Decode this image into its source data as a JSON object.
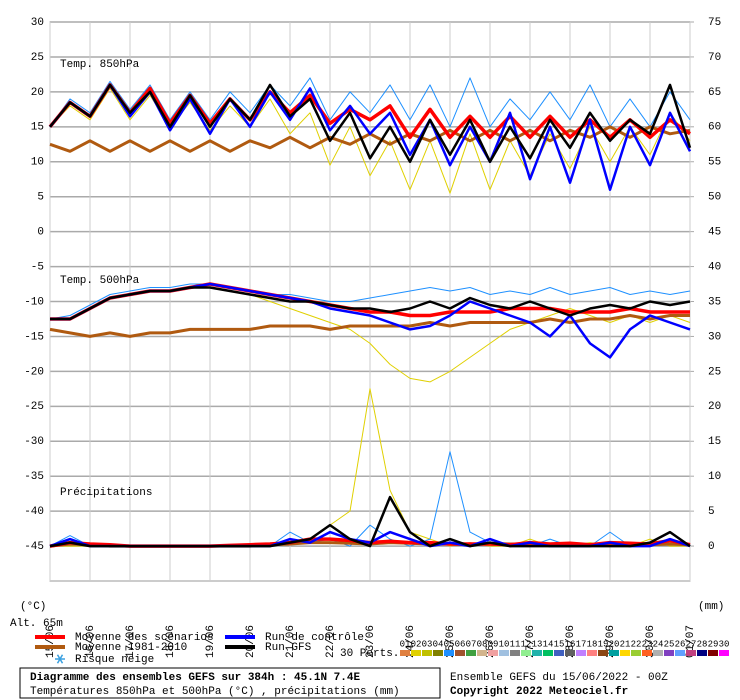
{
  "chart_data": {
    "type": "line",
    "panel_labels": [
      "Temp. 850hPa",
      "Temp. 500hPa",
      "Précipitations"
    ],
    "ylabel": "(°C)",
    "y2label": "(mm)",
    "altitude": "Alt. 65m",
    "snow_label": "Risque neige",
    "perts_label": "30 Perts.",
    "footer": {
      "title": "Diagramme des ensembles GEFS sur 384h : 45.1N 7.4E",
      "subtitle": "Températures 850hPa et 500hPa (°C) , précipitations (mm)",
      "run": "Ensemble GEFS du 15/06/2022 - 00Z",
      "copyright": "Copyright 2022 Meteociel.fr"
    },
    "xlim": [
      0,
      16
    ],
    "xticks": [
      {
        "value": 0,
        "label": "15/06"
      },
      {
        "value": 1,
        "label": "16/06"
      },
      {
        "value": 2,
        "label": "17/06"
      },
      {
        "value": 3,
        "label": "18/06"
      },
      {
        "value": 4,
        "label": "19/06"
      },
      {
        "value": 5,
        "label": "20/06"
      },
      {
        "value": 6,
        "label": "21/06"
      },
      {
        "value": 7,
        "label": "22/06"
      },
      {
        "value": 8,
        "label": "23/06"
      },
      {
        "value": 9,
        "label": "24/06"
      },
      {
        "value": 10,
        "label": "25/06"
      },
      {
        "value": 11,
        "label": "26/06"
      },
      {
        "value": 12,
        "label": "27/06"
      },
      {
        "value": 13,
        "label": "28/06"
      },
      {
        "value": 14,
        "label": "29/06"
      },
      {
        "value": 15,
        "label": "30/06"
      },
      {
        "value": 16,
        "label": "01/07"
      }
    ],
    "ylim": [
      -50,
      30
    ],
    "yticks": [
      30,
      25,
      20,
      15,
      10,
      5,
      0,
      -5,
      -10,
      -15,
      -20,
      -25,
      -30,
      -35,
      -40,
      -45
    ],
    "y2lim": [
      -5,
      75
    ],
    "y2ticks": [
      75,
      70,
      65,
      60,
      55,
      50,
      45,
      40,
      35,
      30,
      25,
      20,
      15,
      10,
      5,
      0
    ],
    "grid": true,
    "x": [
      0,
      0.5,
      1,
      1.5,
      2,
      2.5,
      3,
      3.5,
      4,
      4.5,
      5,
      5.5,
      6,
      6.5,
      7,
      7.5,
      8,
      8.5,
      9,
      9.5,
      10,
      10.5,
      11,
      11.5,
      12,
      12.5,
      13,
      13.5,
      14,
      14.5,
      15,
      15.5,
      16
    ],
    "perturbations": [
      {
        "name": "01",
        "color": "#e08040"
      },
      {
        "name": "02",
        "color": "#e0d000",
        "t850": [
          15,
          18,
          16,
          20.5,
          16,
          19.5,
          15,
          18.5,
          14.5,
          18,
          15,
          19,
          14,
          17,
          9.5,
          15,
          8,
          13,
          6,
          13,
          5.5,
          14,
          6,
          13,
          8,
          14,
          9,
          15,
          10,
          15,
          11,
          17,
          13
        ],
        "t500": [
          -12.5,
          -12.5,
          -11,
          -9.5,
          -9,
          -8.5,
          -8.5,
          -8,
          -8,
          -8.5,
          -9,
          -10,
          -11,
          -12,
          -13,
          -14,
          -16,
          -19,
          -21,
          -21.5,
          -20,
          -18,
          -16,
          -14,
          -13,
          -12,
          -11,
          -12,
          -13,
          -12,
          -13,
          -12,
          -13
        ],
        "precip": [
          0,
          0,
          0,
          0,
          0,
          0,
          0,
          0,
          0,
          0,
          0,
          0,
          0.5,
          1,
          3,
          5,
          22.5,
          8,
          2,
          1,
          0,
          0.5,
          0,
          0,
          1,
          0,
          0,
          0.5,
          0,
          0,
          1,
          0,
          0
        ]
      },
      {
        "name": "03",
        "color": "#c0c000"
      },
      {
        "name": "04",
        "color": "#808000"
      },
      {
        "name": "05",
        "color": "#1e90ff",
        "t850": [
          15,
          19,
          17,
          21.5,
          17.5,
          21,
          16,
          20,
          16,
          20,
          17,
          21,
          18,
          22,
          16,
          20,
          17,
          21,
          16,
          21,
          15,
          22,
          15,
          19,
          16,
          20,
          16,
          21,
          15,
          19,
          15,
          20,
          16
        ],
        "t500": [
          -12.5,
          -12,
          -10.5,
          -9,
          -8.5,
          -8,
          -8,
          -7.5,
          -7.5,
          -8,
          -8.5,
          -9,
          -9,
          -9.5,
          -10,
          -10,
          -9.5,
          -9,
          -8.5,
          -8,
          -8.5,
          -8,
          -9,
          -8.5,
          -9,
          -8,
          -9,
          -8.5,
          -8,
          -9,
          -8.5,
          -9,
          -8.5
        ],
        "precip": [
          0,
          1.5,
          0,
          0,
          0,
          0,
          0,
          0,
          0,
          0,
          0,
          0,
          2,
          0.5,
          1,
          0,
          3,
          1,
          0,
          1,
          13.5,
          2,
          0.5,
          0,
          0,
          1,
          0,
          0,
          2,
          0,
          0,
          1,
          0
        ]
      },
      {
        "name": "06",
        "color": "#a0522d"
      },
      {
        "name": "07",
        "color": "#40a040"
      },
      {
        "name": "08",
        "color": "#d2b48c"
      },
      {
        "name": "09",
        "color": "#f0a0a0"
      },
      {
        "name": "10",
        "color": "#a0c0e0"
      },
      {
        "name": "11",
        "color": "#808080"
      },
      {
        "name": "12",
        "color": "#90ee90"
      },
      {
        "name": "13",
        "color": "#20b2aa"
      },
      {
        "name": "14",
        "color": "#00c060"
      },
      {
        "name": "15",
        "color": "#4060c0"
      },
      {
        "name": "16",
        "color": "#606060"
      },
      {
        "name": "17",
        "color": "#c080ff"
      },
      {
        "name": "18",
        "color": "#ff8080"
      },
      {
        "name": "19",
        "color": "#8b4513"
      },
      {
        "name": "20",
        "color": "#00a0a0"
      },
      {
        "name": "21",
        "color": "#ffd700"
      },
      {
        "name": "22",
        "color": "#9acd32"
      },
      {
        "name": "23",
        "color": "#ff6020"
      },
      {
        "name": "24",
        "color": "#b0b0b0"
      },
      {
        "name": "25",
        "color": "#8040c0"
      },
      {
        "name": "26",
        "color": "#60a0ff"
      },
      {
        "name": "27",
        "color": "#c04080"
      },
      {
        "name": "28",
        "color": "#000080"
      },
      {
        "name": "29",
        "color": "#800000"
      },
      {
        "name": "30",
        "color": "#ff00ff"
      }
    ],
    "series": [
      {
        "name": "Moyenne 1981-2010",
        "color": "#b05a10",
        "t850": [
          12.5,
          11.5,
          13,
          11.5,
          13,
          11.5,
          13,
          11.5,
          13,
          11.5,
          13,
          12,
          13.5,
          12,
          13.5,
          12.5,
          14,
          12.5,
          14,
          13,
          14.5,
          13,
          14.5,
          13,
          14.5,
          13,
          14.5,
          13.5,
          15,
          13.5,
          15,
          14,
          14.5
        ],
        "t500": [
          -14,
          -14.5,
          -15,
          -14.5,
          -15,
          -14.5,
          -14.5,
          -14,
          -14,
          -14,
          -14,
          -13.5,
          -13.5,
          -13.5,
          -14,
          -13.5,
          -13.5,
          -13.5,
          -13.5,
          -13,
          -13.5,
          -13,
          -13,
          -13,
          -13,
          -12.5,
          -13,
          -12.5,
          -12.5,
          -12,
          -12.5,
          -12,
          -12
        ],
        "precip": [
          0,
          0.3,
          0.2,
          0,
          0,
          0,
          0,
          0,
          0,
          0,
          0,
          0.2,
          0.3,
          0.5,
          0.5,
          0.4,
          0.3,
          0.5,
          0.4,
          0.3,
          0.3,
          0.2,
          0.4,
          0.3,
          0.3,
          0.2,
          0.3,
          0.2,
          0.3,
          0.3,
          0.2,
          0.3,
          0.2
        ]
      },
      {
        "name": "Moyenne des scénarios",
        "color": "#ff0000",
        "t850": [
          15,
          18.5,
          16.5,
          21,
          17,
          20.5,
          15.5,
          19.5,
          15.5,
          19,
          16,
          20,
          17,
          19.5,
          15.5,
          17.5,
          16,
          18,
          13.5,
          17.5,
          13.5,
          16.5,
          13.5,
          16.5,
          13.5,
          16.5,
          13.5,
          16,
          13.5,
          16,
          13.5,
          16,
          14
        ],
        "t500": [
          -12.5,
          -12.5,
          -11,
          -9.5,
          -9,
          -8.5,
          -8.5,
          -8,
          -7.5,
          -8,
          -8.5,
          -9,
          -9.5,
          -10,
          -10.5,
          -11,
          -11.5,
          -11.5,
          -12,
          -12,
          -11.5,
          -11.5,
          -11.5,
          -11,
          -11,
          -11,
          -11.5,
          -11.5,
          -11.5,
          -11,
          -11.5,
          -11.5,
          -11.5
        ],
        "precip": [
          0,
          0.5,
          0.3,
          0.2,
          0,
          0,
          0,
          0,
          0,
          0.1,
          0.2,
          0.3,
          0.5,
          1,
          1,
          0.8,
          0.5,
          0.7,
          0.5,
          0.5,
          0.3,
          0.3,
          0.3,
          0.2,
          0.5,
          0.3,
          0.4,
          0.2,
          0.5,
          0.4,
          0.3,
          0.8,
          0.2
        ]
      },
      {
        "name": "Run de contrôle",
        "color": "#0000ff",
        "t850": [
          15,
          18.5,
          16.5,
          21,
          16.5,
          20,
          14.5,
          19,
          14,
          19,
          15,
          20,
          16,
          20.5,
          14.5,
          18,
          14,
          17,
          11,
          16,
          9.5,
          15,
          10,
          17,
          7.5,
          15,
          7,
          16,
          6,
          15,
          9.5,
          17,
          11.5
        ],
        "t500": [
          -12.5,
          -12.5,
          -11,
          -9.5,
          -9,
          -8.5,
          -8.5,
          -8,
          -7.5,
          -8,
          -8.5,
          -9,
          -9.5,
          -10,
          -11,
          -11.5,
          -12,
          -13,
          -14,
          -13.5,
          -12,
          -10,
          -11,
          -12,
          -13,
          -15,
          -12,
          -16,
          -18,
          -14,
          -12,
          -13,
          -14
        ],
        "precip": [
          0,
          1,
          0,
          0,
          0,
          0,
          0,
          0,
          0,
          0,
          0,
          0,
          1,
          0.5,
          2,
          1,
          0.5,
          2,
          1,
          0,
          0.5,
          0,
          1,
          0,
          0.5,
          0,
          0,
          0,
          0.5,
          0,
          0,
          1,
          0
        ]
      },
      {
        "name": "Run GFS",
        "color": "#000000",
        "t850": [
          15,
          18.5,
          16.5,
          21,
          17,
          20,
          15,
          19.5,
          15,
          19,
          16,
          21,
          16.5,
          19,
          13,
          17,
          10.5,
          15,
          10,
          16,
          11,
          16,
          10,
          15,
          10.5,
          16,
          12,
          17,
          13,
          16,
          14,
          21,
          12
        ],
        "t500": [
          -12.5,
          -12.5,
          -11,
          -9.5,
          -9,
          -8.5,
          -8.5,
          -8,
          -8,
          -8.5,
          -9,
          -9.5,
          -10,
          -10,
          -10.5,
          -11,
          -11,
          -11.5,
          -11,
          -10,
          -11,
          -9.5,
          -10.5,
          -11,
          -10,
          -11,
          -12,
          -11,
          -10.5,
          -11,
          -10,
          -10.5,
          -10
        ],
        "precip": [
          0,
          0.5,
          0,
          0,
          0,
          0,
          0,
          0,
          0,
          0,
          0,
          0,
          0.5,
          1,
          3,
          1,
          0,
          7,
          2,
          0,
          1,
          0,
          0.5,
          0,
          0,
          0,
          0,
          0,
          0,
          0,
          0.5,
          2,
          0
        ]
      }
    ]
  }
}
